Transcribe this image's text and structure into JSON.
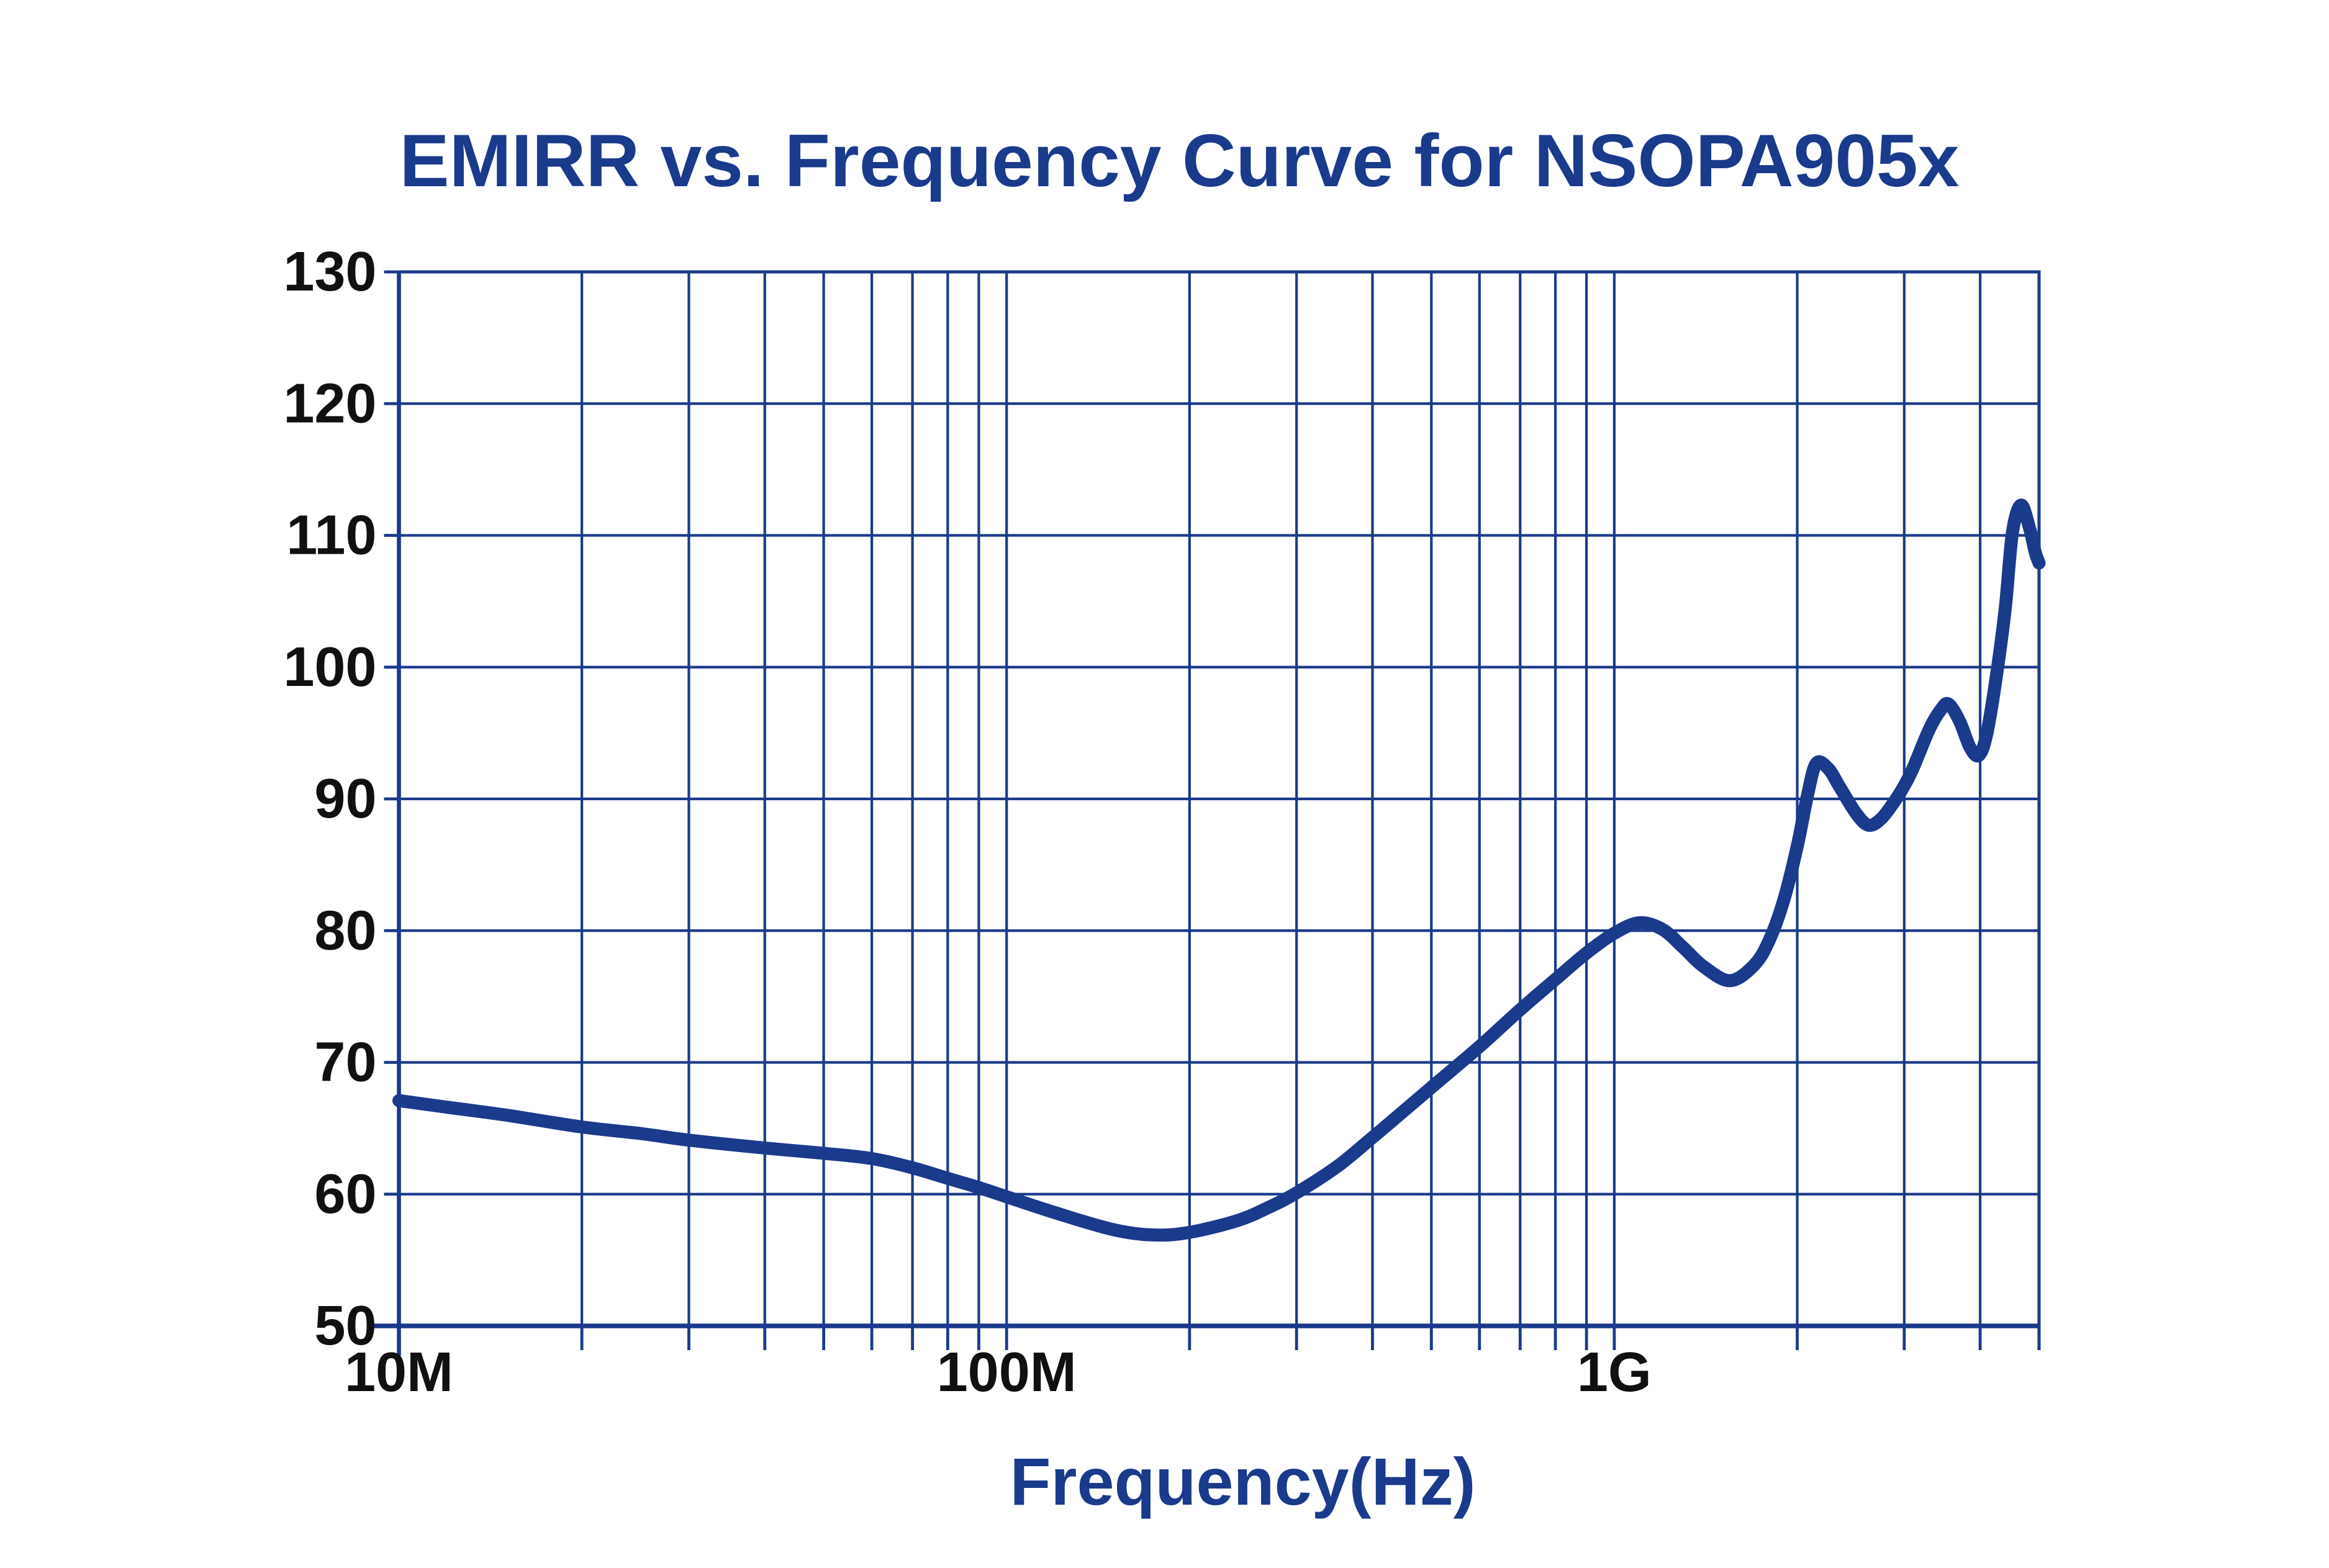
{
  "page": {
    "background": "#ffffff"
  },
  "chart_data": {
    "type": "line",
    "title": "EMIRR vs. Frequency Curve for NSOPA905x",
    "xlabel": "Frequency(Hz)",
    "x_scale": "log",
    "xlim_hz": [
      10000000,
      5000000000
    ],
    "ylim": [
      50,
      130
    ],
    "grid": true,
    "legend": "none",
    "x_major_ticks": [
      {
        "hz": 10000000,
        "label": "10M"
      },
      {
        "hz": 100000000,
        "label": "100M"
      },
      {
        "hz": 1000000000,
        "label": "1G"
      }
    ],
    "x_minor_mantissas": [
      2,
      3,
      4,
      5,
      6,
      7,
      8,
      9
    ],
    "y_ticks": [
      {
        "value": 50,
        "label": "50"
      },
      {
        "value": 60,
        "label": "60"
      },
      {
        "value": 70,
        "label": "70"
      },
      {
        "value": 80,
        "label": "80"
      },
      {
        "value": 90,
        "label": "90"
      },
      {
        "value": 100,
        "label": "100"
      },
      {
        "value": 110,
        "label": "110"
      },
      {
        "value": 120,
        "label": "120"
      },
      {
        "value": 130,
        "label": "130"
      }
    ],
    "colors": {
      "accent": "#1A3A8C",
      "grid": "#1A3A8C",
      "axis": "#1A3A8C",
      "curve": "#1A3A8C",
      "title_text": "#1A3A8C",
      "tick_text": "#101010",
      "background": "#ffffff"
    },
    "series": [
      {
        "name": "EMIRR",
        "points_hz_db": [
          [
            10000000,
            67.1
          ],
          [
            12000000,
            66.6
          ],
          [
            15000000,
            66.0
          ],
          [
            20000000,
            65.1
          ],
          [
            25000000,
            64.6
          ],
          [
            30000000,
            64.1
          ],
          [
            40000000,
            63.5
          ],
          [
            50000000,
            63.1
          ],
          [
            60000000,
            62.7
          ],
          [
            70000000,
            62.0
          ],
          [
            80000000,
            61.2
          ],
          [
            90000000,
            60.5
          ],
          [
            100000000,
            59.8
          ],
          [
            120000000,
            58.6
          ],
          [
            150000000,
            57.3
          ],
          [
            175000000,
            56.9
          ],
          [
            200000000,
            57.1
          ],
          [
            240000000,
            58.0
          ],
          [
            270000000,
            59.0
          ],
          [
            300000000,
            60.1
          ],
          [
            350000000,
            62.1
          ],
          [
            400000000,
            64.3
          ],
          [
            450000000,
            66.3
          ],
          [
            500000000,
            68.1
          ],
          [
            600000000,
            71.2
          ],
          [
            700000000,
            74.0
          ],
          [
            800000000,
            76.3
          ],
          [
            900000000,
            78.3
          ],
          [
            1000000000,
            79.8
          ],
          [
            1100000000,
            80.6
          ],
          [
            1200000000,
            80.1
          ],
          [
            1300000000,
            78.7
          ],
          [
            1400000000,
            77.3
          ],
          [
            1550000000,
            76.2
          ],
          [
            1700000000,
            77.4
          ],
          [
            1800000000,
            79.3
          ],
          [
            1900000000,
            82.3
          ],
          [
            2000000000,
            86.4
          ],
          [
            2080000000,
            90.3
          ],
          [
            2150000000,
            92.7
          ],
          [
            2250000000,
            92.3
          ],
          [
            2350000000,
            90.9
          ],
          [
            2500000000,
            88.9
          ],
          [
            2620000000,
            88.0
          ],
          [
            2750000000,
            88.5
          ],
          [
            2900000000,
            89.9
          ],
          [
            3000000000,
            91.0
          ],
          [
            3100000000,
            92.3
          ],
          [
            3300000000,
            95.3
          ],
          [
            3450000000,
            96.8
          ],
          [
            3550000000,
            97.2
          ],
          [
            3700000000,
            95.9
          ],
          [
            3850000000,
            93.9
          ],
          [
            3980000000,
            93.3
          ],
          [
            4100000000,
            94.9
          ],
          [
            4250000000,
            99.2
          ],
          [
            4400000000,
            104.5
          ],
          [
            4520000000,
            110.2
          ],
          [
            4670000000,
            112.3
          ],
          [
            4820000000,
            110.6
          ],
          [
            4930000000,
            108.7
          ],
          [
            5000000000,
            107.9
          ]
        ]
      }
    ]
  }
}
